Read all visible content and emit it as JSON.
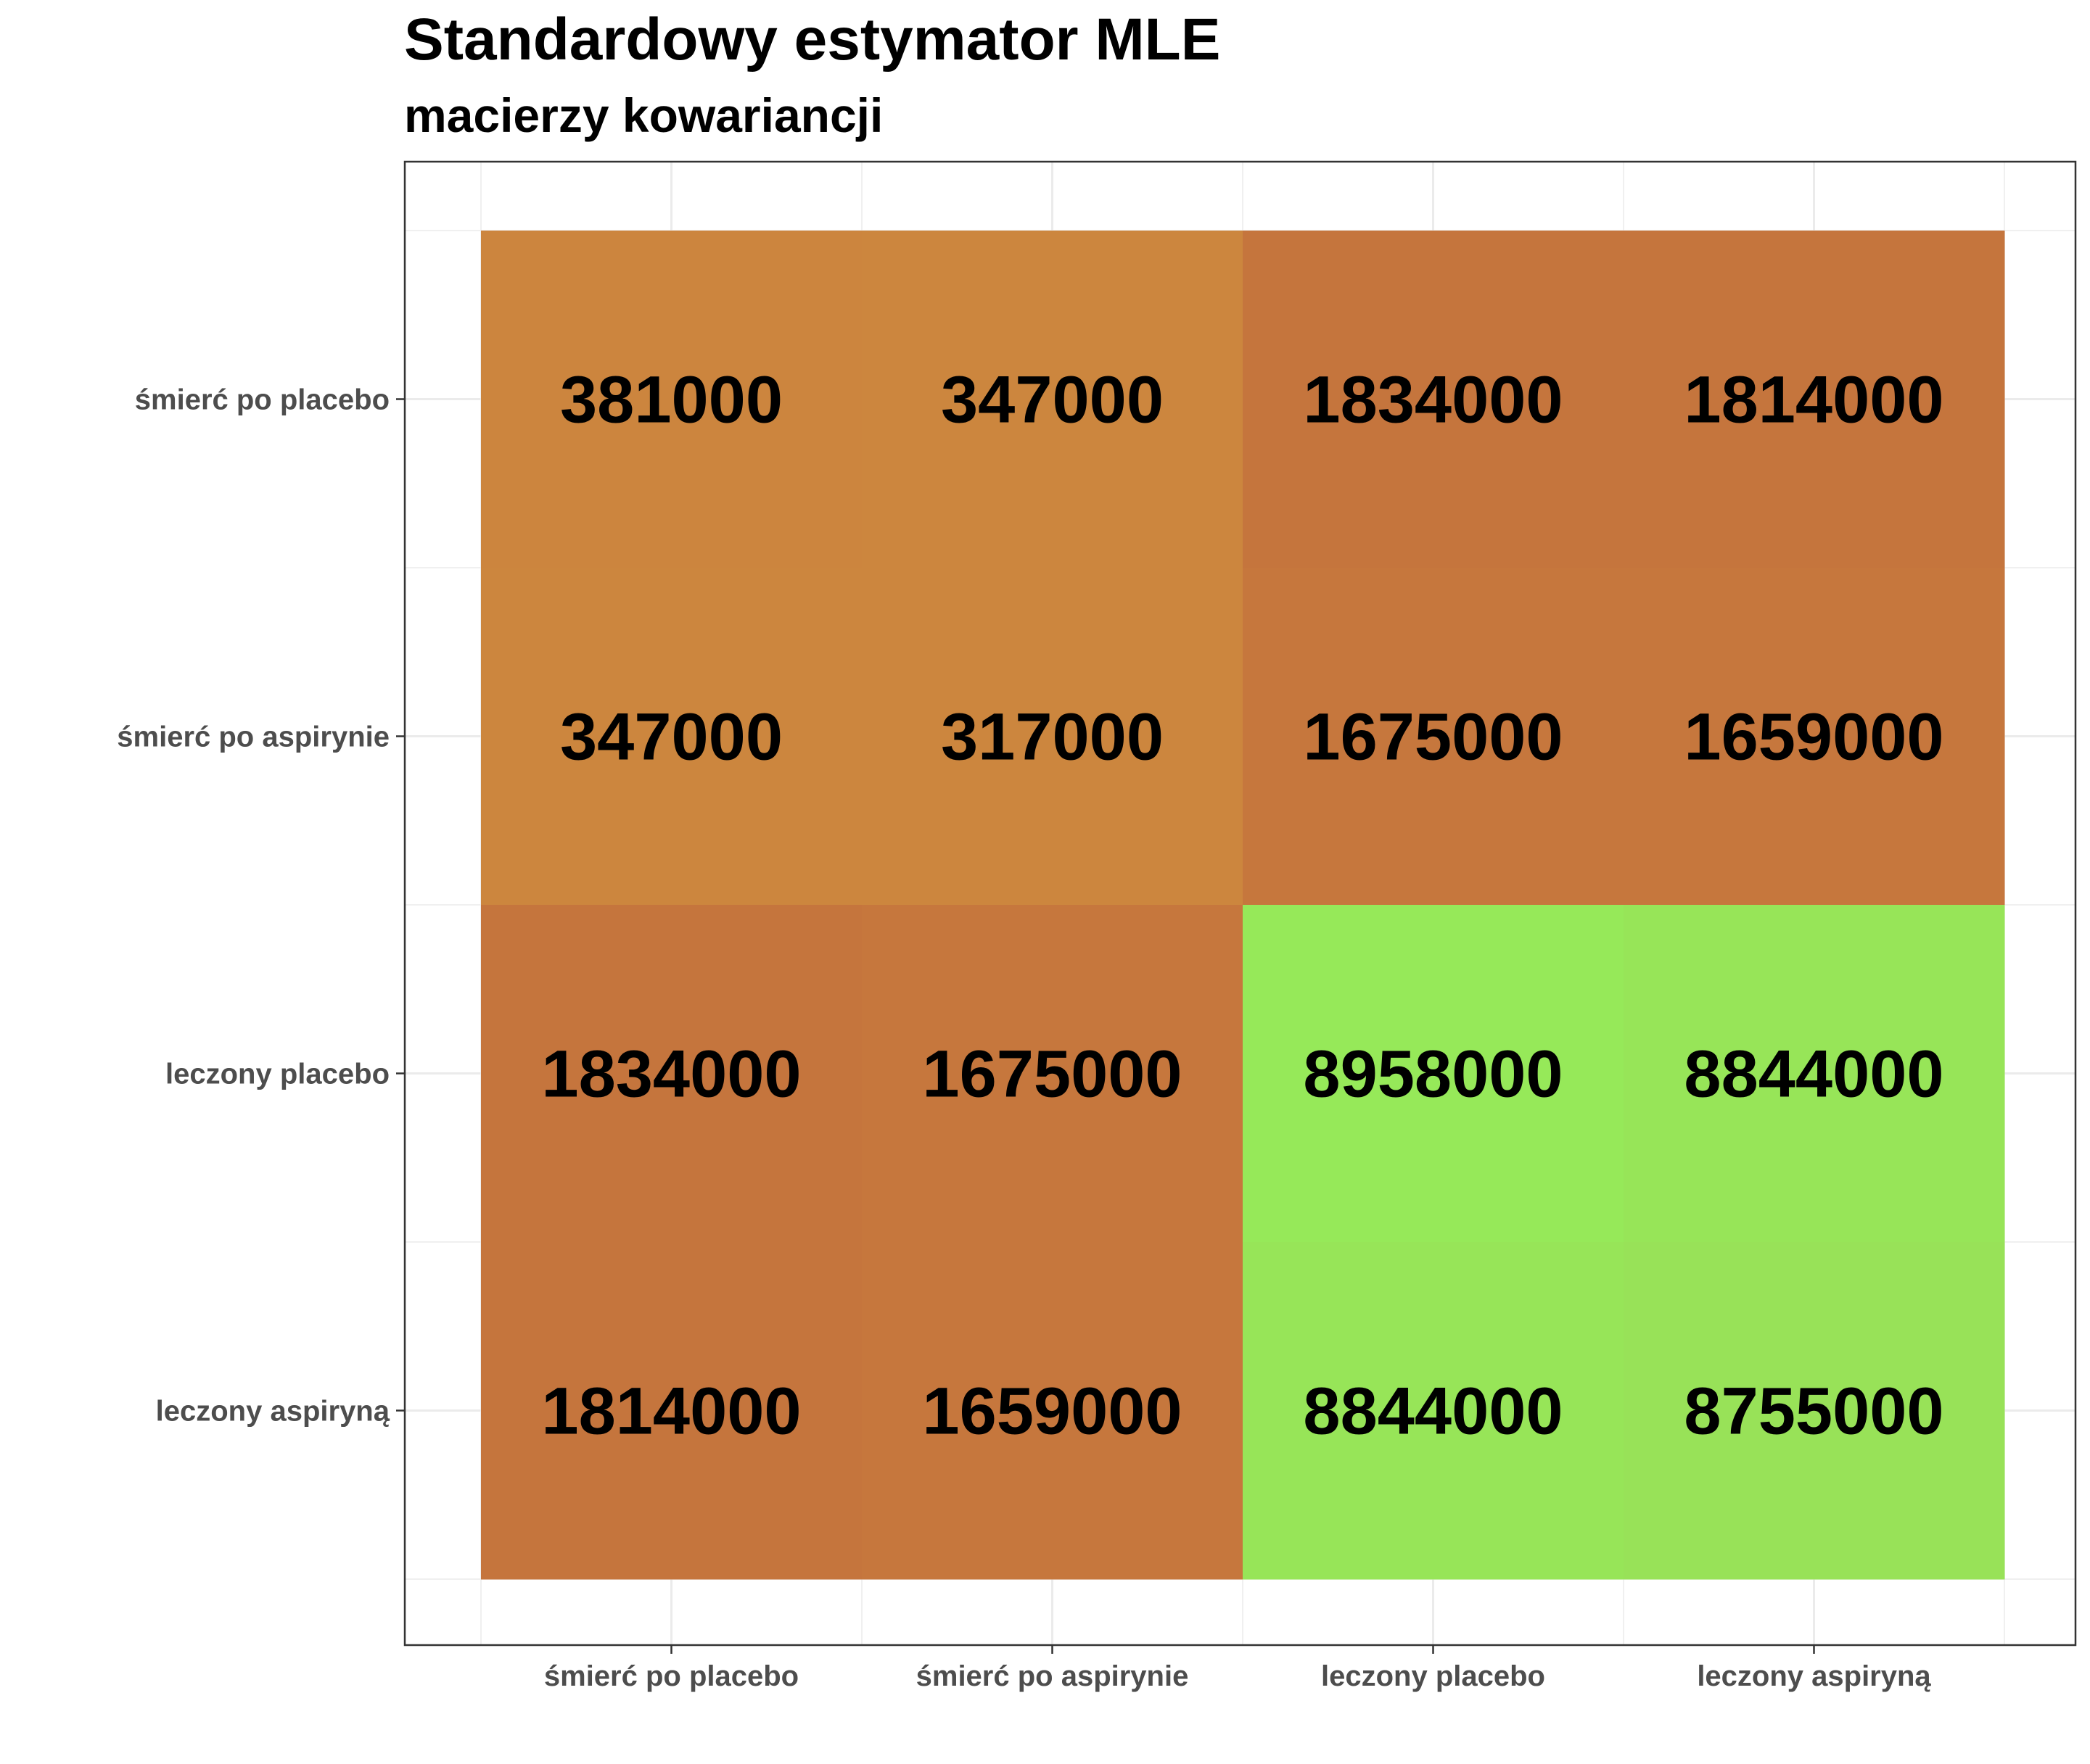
{
  "chart_data": {
    "type": "heatmap",
    "title": "Standardowy estymator MLE",
    "subtitle": "macierzy kowariancji",
    "xlabel": "",
    "ylabel": "",
    "x_categories": [
      "śmierć po placebo",
      "śmierć po aspirynie",
      "leczony placebo",
      "leczony aspiryną"
    ],
    "y_categories": [
      "śmierć po placebo",
      "śmierć po aspirynie",
      "leczony placebo",
      "leczony aspiryną"
    ],
    "values": [
      [
        381000,
        347000,
        1834000,
        1814000
      ],
      [
        347000,
        317000,
        1675000,
        1659000
      ],
      [
        1834000,
        1675000,
        8958000,
        8844000
      ],
      [
        1814000,
        1659000,
        8844000,
        8755000
      ]
    ],
    "color_scale": {
      "low": "#cc863e",
      "mid": "#b9553c",
      "high": "#96e959"
    },
    "grid": true,
    "legend": "none"
  }
}
